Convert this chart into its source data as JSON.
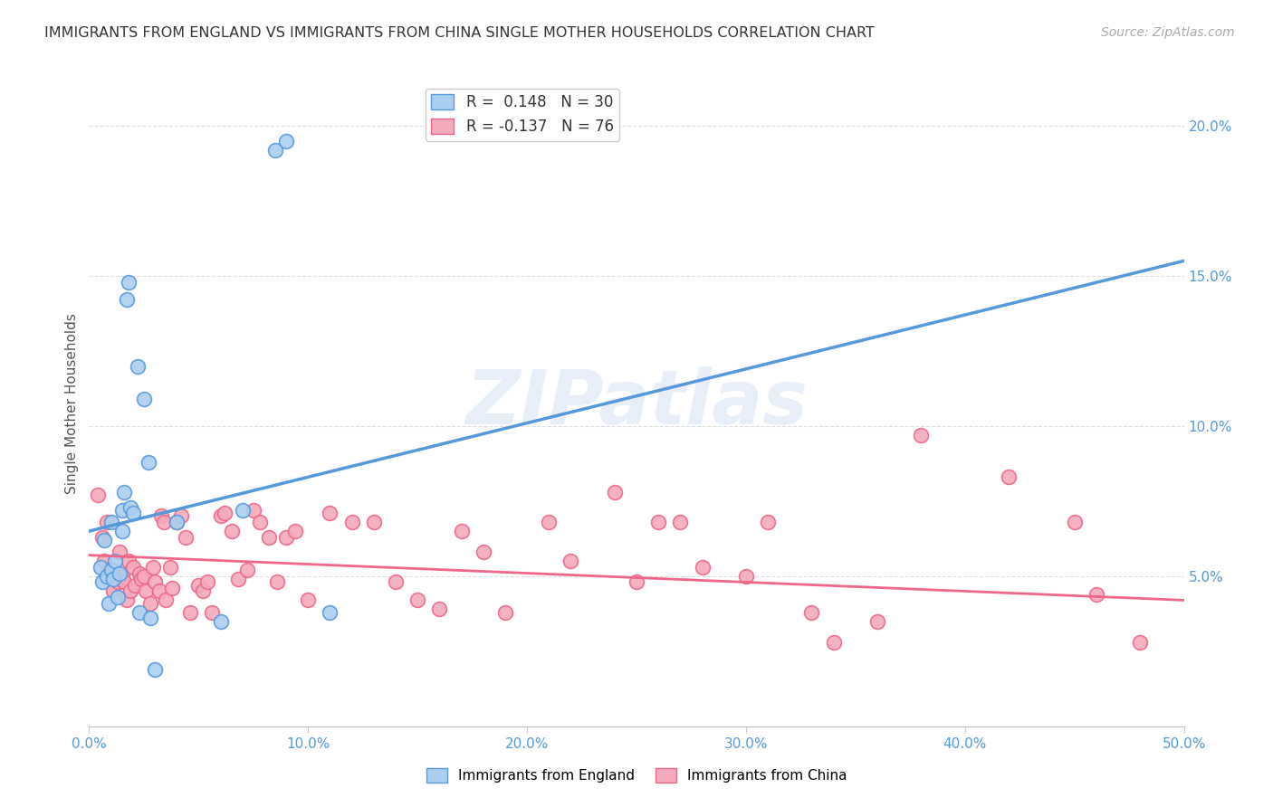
{
  "title": "IMMIGRANTS FROM ENGLAND VS IMMIGRANTS FROM CHINA SINGLE MOTHER HOUSEHOLDS CORRELATION CHART",
  "source": "Source: ZipAtlas.com",
  "xlabel": "",
  "ylabel": "Single Mother Households",
  "xlim": [
    0.0,
    0.5
  ],
  "ylim": [
    0.0,
    0.215
  ],
  "xticks": [
    0.0,
    0.1,
    0.2,
    0.3,
    0.4,
    0.5
  ],
  "xticklabels": [
    "0.0%",
    "10.0%",
    "20.0%",
    "30.0%",
    "40.0%",
    "50.0%"
  ],
  "yticks_right": [
    0.05,
    0.1,
    0.15,
    0.2
  ],
  "yticklabels_right": [
    "5.0%",
    "10.0%",
    "15.0%",
    "20.0%"
  ],
  "england_color": "#aacff0",
  "china_color": "#f5aabb",
  "england_line_color": "#5599dd",
  "china_line_color": "#ee6688",
  "england_R": 0.148,
  "england_N": 30,
  "china_R": -0.137,
  "china_N": 76,
  "watermark": "ZIPatlas",
  "england_points": [
    [
      0.005,
      0.053
    ],
    [
      0.006,
      0.048
    ],
    [
      0.007,
      0.062
    ],
    [
      0.008,
      0.05
    ],
    [
      0.009,
      0.041
    ],
    [
      0.01,
      0.068
    ],
    [
      0.01,
      0.052
    ],
    [
      0.011,
      0.049
    ],
    [
      0.012,
      0.055
    ],
    [
      0.013,
      0.043
    ],
    [
      0.014,
      0.051
    ],
    [
      0.015,
      0.072
    ],
    [
      0.015,
      0.065
    ],
    [
      0.016,
      0.078
    ],
    [
      0.017,
      0.142
    ],
    [
      0.018,
      0.148
    ],
    [
      0.019,
      0.073
    ],
    [
      0.02,
      0.071
    ],
    [
      0.022,
      0.12
    ],
    [
      0.023,
      0.038
    ],
    [
      0.025,
      0.109
    ],
    [
      0.027,
      0.088
    ],
    [
      0.028,
      0.036
    ],
    [
      0.03,
      0.019
    ],
    [
      0.04,
      0.068
    ],
    [
      0.06,
      0.035
    ],
    [
      0.07,
      0.072
    ],
    [
      0.085,
      0.192
    ],
    [
      0.09,
      0.195
    ],
    [
      0.11,
      0.038
    ]
  ],
  "china_points": [
    [
      0.004,
      0.077
    ],
    [
      0.006,
      0.063
    ],
    [
      0.007,
      0.055
    ],
    [
      0.008,
      0.068
    ],
    [
      0.009,
      0.052
    ],
    [
      0.01,
      0.05
    ],
    [
      0.011,
      0.045
    ],
    [
      0.012,
      0.051
    ],
    [
      0.013,
      0.048
    ],
    [
      0.014,
      0.058
    ],
    [
      0.015,
      0.05
    ],
    [
      0.016,
      0.048
    ],
    [
      0.017,
      0.042
    ],
    [
      0.018,
      0.055
    ],
    [
      0.019,
      0.045
    ],
    [
      0.02,
      0.053
    ],
    [
      0.021,
      0.047
    ],
    [
      0.023,
      0.051
    ],
    [
      0.024,
      0.049
    ],
    [
      0.025,
      0.05
    ],
    [
      0.026,
      0.045
    ],
    [
      0.028,
      0.041
    ],
    [
      0.029,
      0.053
    ],
    [
      0.03,
      0.048
    ],
    [
      0.032,
      0.045
    ],
    [
      0.033,
      0.07
    ],
    [
      0.034,
      0.068
    ],
    [
      0.035,
      0.042
    ],
    [
      0.037,
      0.053
    ],
    [
      0.038,
      0.046
    ],
    [
      0.04,
      0.068
    ],
    [
      0.042,
      0.07
    ],
    [
      0.044,
      0.063
    ],
    [
      0.046,
      0.038
    ],
    [
      0.05,
      0.047
    ],
    [
      0.052,
      0.045
    ],
    [
      0.054,
      0.048
    ],
    [
      0.056,
      0.038
    ],
    [
      0.06,
      0.07
    ],
    [
      0.062,
      0.071
    ],
    [
      0.065,
      0.065
    ],
    [
      0.068,
      0.049
    ],
    [
      0.072,
      0.052
    ],
    [
      0.075,
      0.072
    ],
    [
      0.078,
      0.068
    ],
    [
      0.082,
      0.063
    ],
    [
      0.086,
      0.048
    ],
    [
      0.09,
      0.063
    ],
    [
      0.094,
      0.065
    ],
    [
      0.1,
      0.042
    ],
    [
      0.11,
      0.071
    ],
    [
      0.12,
      0.068
    ],
    [
      0.13,
      0.068
    ],
    [
      0.14,
      0.048
    ],
    [
      0.15,
      0.042
    ],
    [
      0.16,
      0.039
    ],
    [
      0.17,
      0.065
    ],
    [
      0.18,
      0.058
    ],
    [
      0.19,
      0.038
    ],
    [
      0.21,
      0.068
    ],
    [
      0.22,
      0.055
    ],
    [
      0.24,
      0.078
    ],
    [
      0.25,
      0.048
    ],
    [
      0.26,
      0.068
    ],
    [
      0.27,
      0.068
    ],
    [
      0.28,
      0.053
    ],
    [
      0.3,
      0.05
    ],
    [
      0.31,
      0.068
    ],
    [
      0.33,
      0.038
    ],
    [
      0.34,
      0.028
    ],
    [
      0.36,
      0.035
    ],
    [
      0.38,
      0.097
    ],
    [
      0.42,
      0.083
    ],
    [
      0.45,
      0.068
    ],
    [
      0.46,
      0.044
    ],
    [
      0.48,
      0.028
    ]
  ],
  "eng_line_x": [
    0.0,
    0.5
  ],
  "eng_line_y": [
    0.065,
    0.155
  ],
  "chn_line_x": [
    0.0,
    0.5
  ],
  "chn_line_y": [
    0.057,
    0.042
  ]
}
